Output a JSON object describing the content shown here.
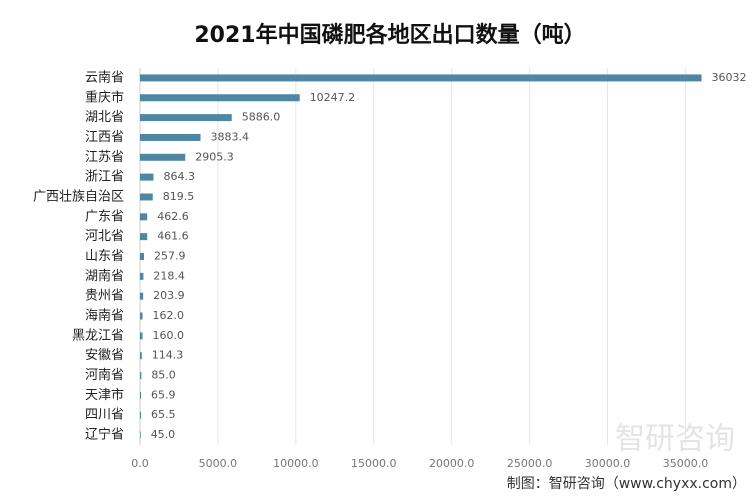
{
  "chart_data": {
    "type": "bar",
    "orientation": "horizontal",
    "title": "2021年中国磷肥各地区出口数量（吨）",
    "source": "制图：智研咨询（www.chyxx.com）",
    "watermark": "智研咨询",
    "categories": [
      "云南省",
      "重庆市",
      "湖北省",
      "江西省",
      "江苏省",
      "浙江省",
      "广西壮族自治区",
      "广东省",
      "河北省",
      "山东省",
      "湖南省",
      "贵州省",
      "海南省",
      "黑龙江省",
      "安徽省",
      "河南省",
      "天津市",
      "四川省",
      "辽宁省"
    ],
    "values": [
      36032,
      10247.2,
      5886.0,
      3883.4,
      2905.3,
      864.3,
      819.5,
      462.6,
      461.6,
      257.9,
      218.4,
      203.9,
      162.0,
      160.0,
      114.3,
      85.0,
      65.9,
      65.5,
      45.0
    ],
    "value_labels": [
      "36032",
      "10247.2",
      "5886.0",
      "3883.4",
      "2905.3",
      "864.3",
      "819.5",
      "462.6",
      "461.6",
      "257.9",
      "218.4",
      "203.9",
      "162.0",
      "160.0",
      "114.3",
      "85.0",
      "65.9",
      "65.5",
      "45.0"
    ],
    "color": "#4f87a3",
    "xlim": [
      0,
      38500
    ],
    "xticks": [
      {
        "value": 0,
        "label": "0.0"
      },
      {
        "value": 5000,
        "label": "5000.0"
      },
      {
        "value": 10000,
        "label": "10000.0"
      },
      {
        "value": 15000,
        "label": "15000.0"
      },
      {
        "value": 20000,
        "label": "20000.0"
      },
      {
        "value": 25000,
        "label": "25000.0"
      },
      {
        "value": 30000,
        "label": "30000.0"
      },
      {
        "value": 35000,
        "label": "35000.0"
      }
    ],
    "grid": true
  }
}
